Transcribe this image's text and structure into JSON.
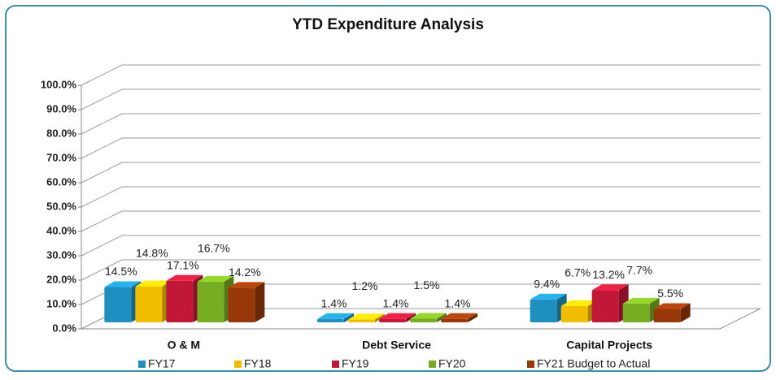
{
  "chart_data": {
    "type": "bar3d",
    "title": "YTD Expenditure Analysis",
    "categories": [
      "O & M",
      "Debt Service",
      "Capital Projects"
    ],
    "series": [
      {
        "name": "FY17",
        "color": "#1f8fc0",
        "values": [
          14.5,
          1.4,
          9.4
        ],
        "value_labels": [
          "14.5%",
          "1.4%",
          "9.4%"
        ]
      },
      {
        "name": "FY18",
        "color": "#f2be00",
        "values": [
          14.8,
          1.2,
          6.7
        ],
        "value_labels": [
          "14.8%",
          "1.2%",
          "6.7%"
        ]
      },
      {
        "name": "FY19",
        "color": "#c21838",
        "values": [
          17.1,
          1.4,
          13.2
        ],
        "value_labels": [
          "17.1%",
          "1.4%",
          "13.2%"
        ]
      },
      {
        "name": "FY20",
        "color": "#76ad22",
        "values": [
          16.7,
          1.5,
          7.7
        ],
        "value_labels": [
          "16.7%",
          "1.5%",
          "7.7%"
        ]
      },
      {
        "name": "FY21 Budget to Actual",
        "color": "#983808",
        "values": [
          14.2,
          1.4,
          5.5
        ],
        "value_labels": [
          "14.2%",
          "1.4%",
          "5.5%"
        ]
      }
    ],
    "ylim": [
      0,
      100
    ],
    "yticks": [
      {
        "value": 0,
        "label": "0.0%"
      },
      {
        "value": 10,
        "label": "10.0%"
      },
      {
        "value": 20,
        "label": "20.0%"
      },
      {
        "value": 30,
        "label": "30.0%"
      },
      {
        "value": 40,
        "label": "40.0%"
      },
      {
        "value": 50,
        "label": "50.0%"
      },
      {
        "value": 60,
        "label": "60.0%"
      },
      {
        "value": 70,
        "label": "70.0%"
      },
      {
        "value": 80,
        "label": "80.0%"
      },
      {
        "value": 90,
        "label": "90.0%"
      },
      {
        "value": 100,
        "label": "100.0%"
      }
    ],
    "grid": true,
    "legend": "bottom"
  }
}
